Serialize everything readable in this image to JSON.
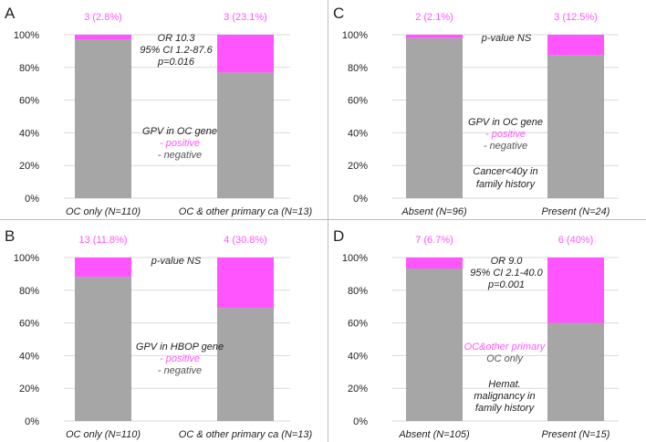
{
  "colors": {
    "positive": "#ff55ff",
    "negative": "#a6a6a6",
    "text": "#222222",
    "grid": "#d9d9d9"
  },
  "panels": [
    {
      "letter": "A",
      "yticks": [
        "0%",
        "20%",
        "40%",
        "60%",
        "80%",
        "100%"
      ],
      "annotations": [
        {
          "text": "OR 10.3",
          "role": "stat"
        },
        {
          "text": "95% CI 1.2-87.6",
          "role": "stat"
        },
        {
          "text": "p=0.016",
          "role": "stat"
        },
        {
          "text": "GPV in OC gene",
          "role": "legend-title"
        },
        {
          "text": "- positive",
          "role": "positive"
        },
        {
          "text": "- negative",
          "role": "negative"
        }
      ]
    },
    {
      "letter": "C",
      "yticks": [
        "0%",
        "20%",
        "40%",
        "60%",
        "80%",
        "100%"
      ],
      "annotations": [
        {
          "text": "p-value NS",
          "role": "stat"
        },
        {
          "text": "GPV in OC gene",
          "role": "legend-title"
        },
        {
          "text": "- positive",
          "role": "positive"
        },
        {
          "text": "- negative",
          "role": "negative"
        },
        {
          "text": "Cancer<40y in",
          "role": "note"
        },
        {
          "text": "family history",
          "role": "note"
        }
      ]
    },
    {
      "letter": "B",
      "yticks": [
        "0%",
        "20%",
        "40%",
        "60%",
        "80%",
        "100%"
      ],
      "annotations": [
        {
          "text": "p-value NS",
          "role": "stat"
        },
        {
          "text": "GPV in HBOP gene",
          "role": "legend-title"
        },
        {
          "text": "- positive",
          "role": "positive"
        },
        {
          "text": "- negative",
          "role": "negative"
        }
      ]
    },
    {
      "letter": "D",
      "yticks": [
        "0%",
        "20%",
        "40%",
        "60%",
        "80%",
        "100%"
      ],
      "annotations": [
        {
          "text": "OR 9.0",
          "role": "stat"
        },
        {
          "text": "95% CI 2.1-40.0",
          "role": "stat"
        },
        {
          "text": "p=0.001",
          "role": "stat"
        },
        {
          "text": "OC&other primary",
          "role": "positive"
        },
        {
          "text": "OC only",
          "role": "negative"
        },
        {
          "text": "Hemat.",
          "role": "note"
        },
        {
          "text": "malignancy in",
          "role": "note"
        },
        {
          "text": "family history",
          "role": "note"
        }
      ]
    }
  ],
  "chart_data": [
    {
      "panel": "A",
      "type": "bar",
      "stacked": true,
      "ylim": [
        0,
        100
      ],
      "categories": [
        "OC only (N=110)",
        "OC & other primary ca (N=13)"
      ],
      "series": [
        {
          "name": "negative",
          "values": [
            97.2,
            76.9
          ]
        },
        {
          "name": "positive",
          "values": [
            2.8,
            23.1
          ]
        }
      ],
      "top_labels": [
        "3 (2.8%)",
        "3 (23.1%)"
      ]
    },
    {
      "panel": "C",
      "type": "bar",
      "stacked": true,
      "ylim": [
        0,
        100
      ],
      "categories": [
        "Absent (N=96)",
        "Present (N=24)"
      ],
      "series": [
        {
          "name": "negative",
          "values": [
            97.9,
            87.5
          ]
        },
        {
          "name": "positive",
          "values": [
            2.1,
            12.5
          ]
        }
      ],
      "top_labels": [
        "2 (2.1%)",
        "3 (12.5%)"
      ]
    },
    {
      "panel": "B",
      "type": "bar",
      "stacked": true,
      "ylim": [
        0,
        100
      ],
      "categories": [
        "OC only (N=110)",
        "OC & other primary ca (N=13)"
      ],
      "series": [
        {
          "name": "negative",
          "values": [
            88.2,
            69.2
          ]
        },
        {
          "name": "positive",
          "values": [
            11.8,
            30.8
          ]
        }
      ],
      "top_labels": [
        "13 (11.8%)",
        "4 (30.8%)"
      ]
    },
    {
      "panel": "D",
      "type": "bar",
      "stacked": true,
      "ylim": [
        0,
        100
      ],
      "categories": [
        "Absent (N=105)",
        "Present (N=15)"
      ],
      "series": [
        {
          "name": "negative",
          "values": [
            93.3,
            60
          ]
        },
        {
          "name": "positive",
          "values": [
            6.7,
            40
          ]
        }
      ],
      "top_labels": [
        "7 (6.7%)",
        "6 (40%)"
      ]
    }
  ]
}
